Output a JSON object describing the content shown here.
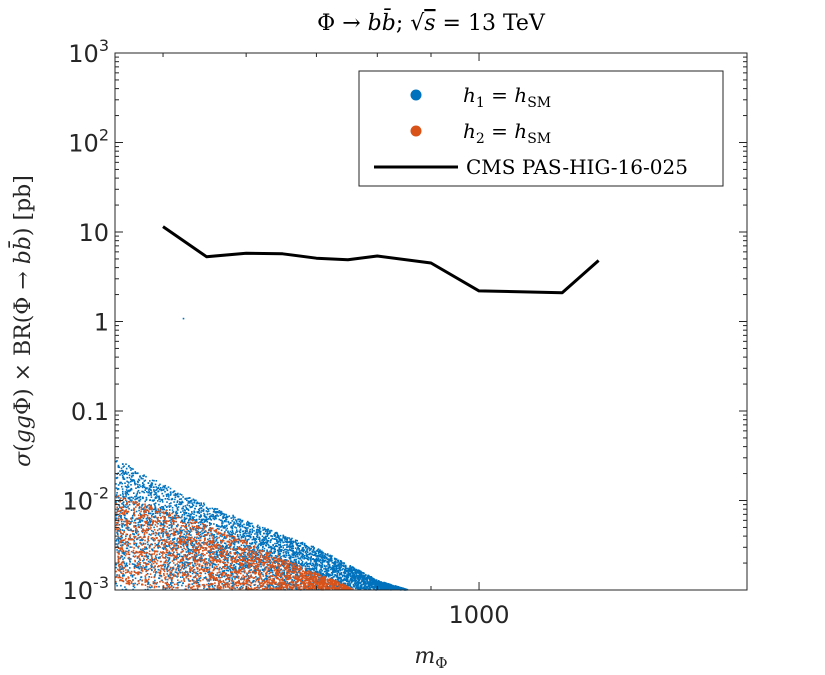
{
  "chart_data": {
    "type": "scatter",
    "title": "Φ → bb̄; √s = 13 TeV",
    "xlabel": "m_Φ",
    "ylabel": "σ(ggΦ) × BR(Φ → bb̄) [pb]",
    "x_scale": "log",
    "y_scale": "log",
    "xlim": [
      450,
      1800
    ],
    "ylim": [
      0.001,
      1000
    ],
    "x_ticks": [
      {
        "value": 1000,
        "label": "1000"
      }
    ],
    "y_ticks": [
      {
        "value": 1000,
        "base": "10",
        "exp": "3"
      },
      {
        "value": 100,
        "base": "10",
        "exp": "2"
      },
      {
        "value": 10,
        "base": "10",
        "exp": ""
      },
      {
        "value": 1,
        "base": "1",
        "exp": ""
      },
      {
        "value": 0.1,
        "base": "0.1",
        "exp": ""
      },
      {
        "value": 0.01,
        "base": "10",
        "exp": "-2"
      },
      {
        "value": 0.001,
        "base": "10",
        "exp": "-3"
      }
    ],
    "legend_position": "top-right",
    "series": [
      {
        "name": "h1 = hSM",
        "legend_main": "h",
        "legend_sub": "1",
        "legend_rest": " = h",
        "legend_sub2": "SM",
        "kind": "scatter",
        "color": "#0072BD",
        "band_upper": [
          [
            450,
            0.03
          ],
          [
            520,
            0.012
          ],
          [
            600,
            0.006
          ],
          [
            700,
            0.003
          ],
          [
            800,
            0.0013
          ],
          [
            860,
            0.001
          ]
        ],
        "band_lower": [
          [
            450,
            0.001
          ],
          [
            860,
            0.001
          ]
        ],
        "outliers": [
          [
            522,
            1.1
          ]
        ]
      },
      {
        "name": "h2 = hSM",
        "legend_main": "h",
        "legend_sub": "2",
        "legend_rest": " = h",
        "legend_sub2": "SM",
        "kind": "scatter",
        "color": "#D95319",
        "band_upper": [
          [
            450,
            0.012
          ],
          [
            500,
            0.008
          ],
          [
            560,
            0.005
          ],
          [
            620,
            0.003
          ],
          [
            680,
            0.0018
          ],
          [
            740,
            0.0012
          ],
          [
            760,
            0.001
          ]
        ],
        "band_lower": [
          [
            450,
            0.0012
          ],
          [
            520,
            0.001
          ],
          [
            760,
            0.001
          ]
        ]
      },
      {
        "name": "CMS PAS-HIG-16-025",
        "kind": "line",
        "color": "#000000",
        "x": [
          500,
          550,
          600,
          650,
          700,
          750,
          800,
          900,
          1000,
          1200,
          1300
        ],
        "y": [
          11.5,
          5.3,
          5.8,
          5.7,
          5.1,
          4.9,
          5.4,
          4.5,
          2.2,
          2.1,
          4.8
        ]
      }
    ]
  }
}
